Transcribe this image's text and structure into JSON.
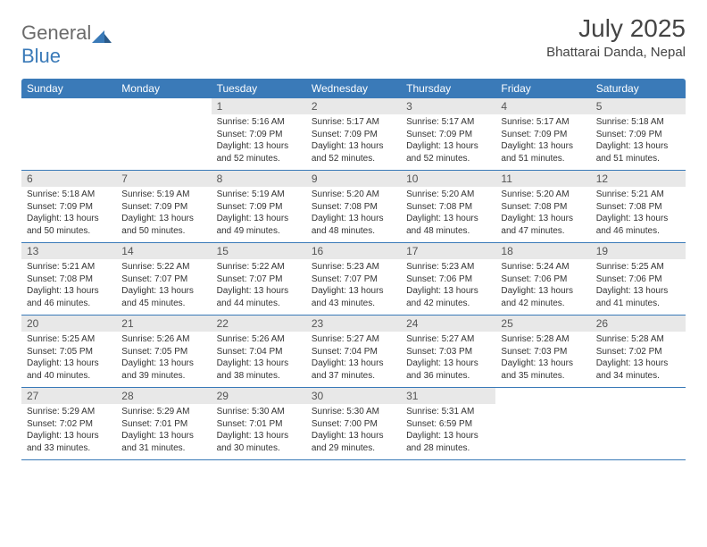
{
  "logo": {
    "text1": "General",
    "text2": "Blue"
  },
  "title": "July 2025",
  "location": "Bhattarai Danda, Nepal",
  "colors": {
    "header_bg": "#3a7ab8",
    "header_text": "#ffffff",
    "daynum_bg": "#e8e8e8",
    "body_text": "#333333",
    "title_text": "#444444",
    "logo_gray": "#6b6b6b",
    "logo_blue": "#3a7ab8",
    "row_border": "#3a7ab8",
    "background": "#ffffff"
  },
  "day_names": [
    "Sunday",
    "Monday",
    "Tuesday",
    "Wednesday",
    "Thursday",
    "Friday",
    "Saturday"
  ],
  "weeks": [
    [
      null,
      null,
      {
        "n": "1",
        "sr": "5:16 AM",
        "ss": "7:09 PM",
        "dl": "13 hours and 52 minutes."
      },
      {
        "n": "2",
        "sr": "5:17 AM",
        "ss": "7:09 PM",
        "dl": "13 hours and 52 minutes."
      },
      {
        "n": "3",
        "sr": "5:17 AM",
        "ss": "7:09 PM",
        "dl": "13 hours and 52 minutes."
      },
      {
        "n": "4",
        "sr": "5:17 AM",
        "ss": "7:09 PM",
        "dl": "13 hours and 51 minutes."
      },
      {
        "n": "5",
        "sr": "5:18 AM",
        "ss": "7:09 PM",
        "dl": "13 hours and 51 minutes."
      }
    ],
    [
      {
        "n": "6",
        "sr": "5:18 AM",
        "ss": "7:09 PM",
        "dl": "13 hours and 50 minutes."
      },
      {
        "n": "7",
        "sr": "5:19 AM",
        "ss": "7:09 PM",
        "dl": "13 hours and 50 minutes."
      },
      {
        "n": "8",
        "sr": "5:19 AM",
        "ss": "7:09 PM",
        "dl": "13 hours and 49 minutes."
      },
      {
        "n": "9",
        "sr": "5:20 AM",
        "ss": "7:08 PM",
        "dl": "13 hours and 48 minutes."
      },
      {
        "n": "10",
        "sr": "5:20 AM",
        "ss": "7:08 PM",
        "dl": "13 hours and 48 minutes."
      },
      {
        "n": "11",
        "sr": "5:20 AM",
        "ss": "7:08 PM",
        "dl": "13 hours and 47 minutes."
      },
      {
        "n": "12",
        "sr": "5:21 AM",
        "ss": "7:08 PM",
        "dl": "13 hours and 46 minutes."
      }
    ],
    [
      {
        "n": "13",
        "sr": "5:21 AM",
        "ss": "7:08 PM",
        "dl": "13 hours and 46 minutes."
      },
      {
        "n": "14",
        "sr": "5:22 AM",
        "ss": "7:07 PM",
        "dl": "13 hours and 45 minutes."
      },
      {
        "n": "15",
        "sr": "5:22 AM",
        "ss": "7:07 PM",
        "dl": "13 hours and 44 minutes."
      },
      {
        "n": "16",
        "sr": "5:23 AM",
        "ss": "7:07 PM",
        "dl": "13 hours and 43 minutes."
      },
      {
        "n": "17",
        "sr": "5:23 AM",
        "ss": "7:06 PM",
        "dl": "13 hours and 42 minutes."
      },
      {
        "n": "18",
        "sr": "5:24 AM",
        "ss": "7:06 PM",
        "dl": "13 hours and 42 minutes."
      },
      {
        "n": "19",
        "sr": "5:25 AM",
        "ss": "7:06 PM",
        "dl": "13 hours and 41 minutes."
      }
    ],
    [
      {
        "n": "20",
        "sr": "5:25 AM",
        "ss": "7:05 PM",
        "dl": "13 hours and 40 minutes."
      },
      {
        "n": "21",
        "sr": "5:26 AM",
        "ss": "7:05 PM",
        "dl": "13 hours and 39 minutes."
      },
      {
        "n": "22",
        "sr": "5:26 AM",
        "ss": "7:04 PM",
        "dl": "13 hours and 38 minutes."
      },
      {
        "n": "23",
        "sr": "5:27 AM",
        "ss": "7:04 PM",
        "dl": "13 hours and 37 minutes."
      },
      {
        "n": "24",
        "sr": "5:27 AM",
        "ss": "7:03 PM",
        "dl": "13 hours and 36 minutes."
      },
      {
        "n": "25",
        "sr": "5:28 AM",
        "ss": "7:03 PM",
        "dl": "13 hours and 35 minutes."
      },
      {
        "n": "26",
        "sr": "5:28 AM",
        "ss": "7:02 PM",
        "dl": "13 hours and 34 minutes."
      }
    ],
    [
      {
        "n": "27",
        "sr": "5:29 AM",
        "ss": "7:02 PM",
        "dl": "13 hours and 33 minutes."
      },
      {
        "n": "28",
        "sr": "5:29 AM",
        "ss": "7:01 PM",
        "dl": "13 hours and 31 minutes."
      },
      {
        "n": "29",
        "sr": "5:30 AM",
        "ss": "7:01 PM",
        "dl": "13 hours and 30 minutes."
      },
      {
        "n": "30",
        "sr": "5:30 AM",
        "ss": "7:00 PM",
        "dl": "13 hours and 29 minutes."
      },
      {
        "n": "31",
        "sr": "5:31 AM",
        "ss": "6:59 PM",
        "dl": "13 hours and 28 minutes."
      },
      null,
      null
    ]
  ],
  "labels": {
    "sunrise": "Sunrise:",
    "sunset": "Sunset:",
    "daylight": "Daylight:"
  }
}
